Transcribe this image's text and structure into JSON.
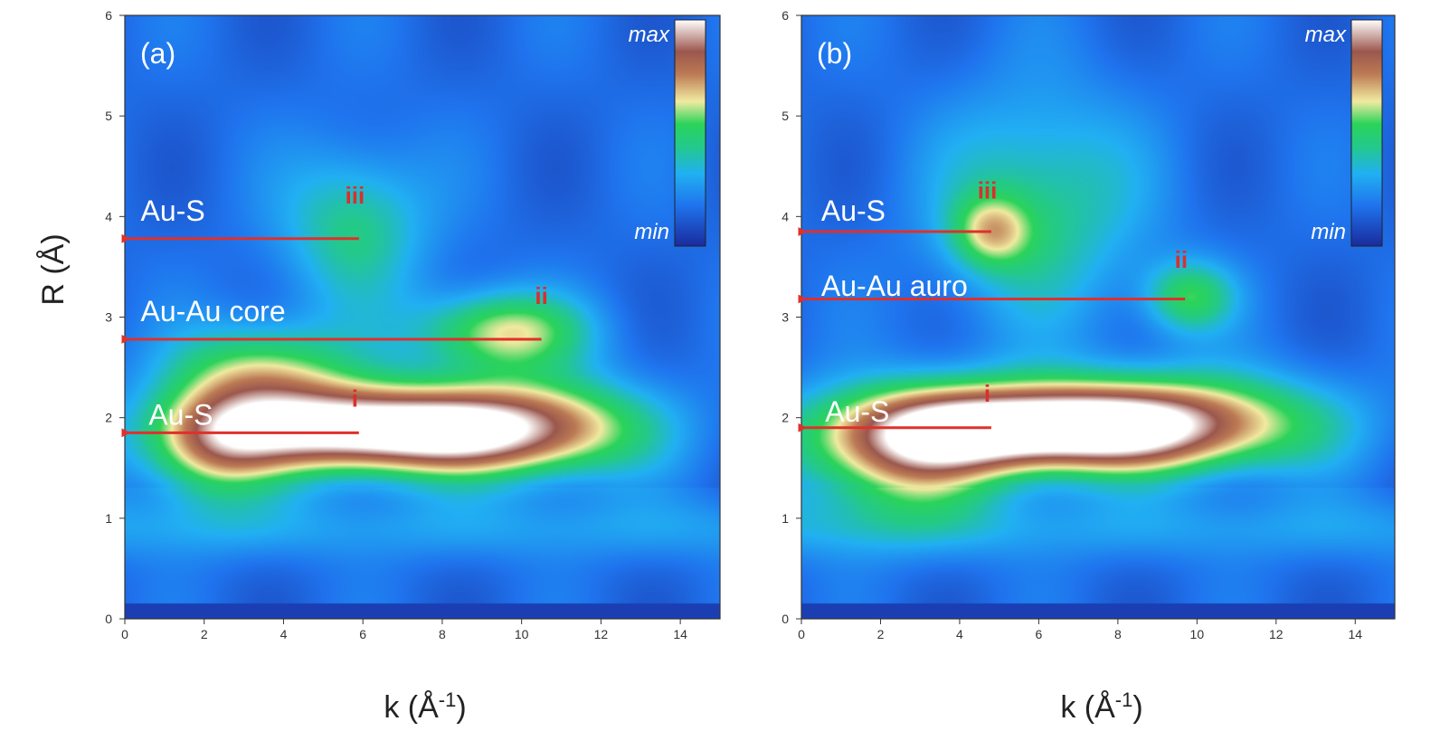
{
  "chart_data": [
    {
      "type": "heatmap",
      "panel_label": "(a)",
      "xlabel": "k (Å",
      "xlabel_sup": "-1",
      "xlabel_tail": ")",
      "ylabel": "R (Å)",
      "xlim": [
        0,
        15
      ],
      "ylim": [
        0,
        6
      ],
      "xticks": [
        0,
        2,
        4,
        6,
        8,
        10,
        12,
        14
      ],
      "yticks": [
        0,
        1,
        2,
        3,
        4,
        5,
        6
      ],
      "colorbar": {
        "max_label": "max",
        "min_label": "min"
      },
      "blobs": [
        {
          "x": 6.3,
          "y": 1.88,
          "intensity": 1.0,
          "sx": 2.9,
          "sy": 0.3
        },
        {
          "x": 10.5,
          "y": 1.9,
          "intensity": 0.45,
          "sx": 2.0,
          "sy": 0.35
        },
        {
          "x": 9.5,
          "y": 2.85,
          "intensity": 0.48,
          "sx": 1.5,
          "sy": 0.28
        },
        {
          "x": 3.5,
          "y": 2.45,
          "intensity": 0.42,
          "sx": 1.6,
          "sy": 0.35
        },
        {
          "x": 5.8,
          "y": 3.9,
          "intensity": 0.3,
          "sx": 1.3,
          "sy": 0.55
        },
        {
          "x": 2.2,
          "y": 1.7,
          "intensity": 0.42,
          "sx": 1.2,
          "sy": 0.4
        }
      ],
      "annotations": [
        {
          "text": "Au-S",
          "label_x": 0.4,
          "label_y": 4.05,
          "arrow_from_x": 5.9,
          "arrow_to_x": 0.1,
          "arrow_y": 3.78,
          "marker": "iii",
          "marker_x": 5.8,
          "marker_y": 4.22
        },
        {
          "text": "Au-Au core",
          "label_x": 0.4,
          "label_y": 3.05,
          "arrow_from_x": 10.5,
          "arrow_to_x": 0.1,
          "arrow_y": 2.78,
          "marker": "ii",
          "marker_x": 10.5,
          "marker_y": 3.22
        },
        {
          "text": "Au-S",
          "label_x": 0.6,
          "label_y": 2.02,
          "arrow_from_x": 5.9,
          "arrow_to_x": 0.1,
          "arrow_y": 1.85,
          "marker": "i",
          "marker_x": 5.8,
          "marker_y": 2.2
        }
      ]
    },
    {
      "type": "heatmap",
      "panel_label": "(b)",
      "xlabel": "k (Å",
      "xlabel_sup": "-1",
      "xlabel_tail": ")",
      "ylabel": "",
      "xlim": [
        0,
        15
      ],
      "ylim": [
        0,
        6
      ],
      "xticks": [
        0,
        2,
        4,
        6,
        8,
        10,
        12,
        14
      ],
      "yticks": [
        0,
        1,
        2,
        3,
        4,
        5,
        6
      ],
      "colorbar": {
        "max_label": "max",
        "min_label": "min"
      },
      "blobs": [
        {
          "x": 5.8,
          "y": 1.9,
          "intensity": 1.0,
          "sx": 3.0,
          "sy": 0.3
        },
        {
          "x": 10.0,
          "y": 1.95,
          "intensity": 0.45,
          "sx": 2.5,
          "sy": 0.35
        },
        {
          "x": 2.5,
          "y": 1.6,
          "intensity": 0.45,
          "sx": 1.8,
          "sy": 0.45
        },
        {
          "x": 9.8,
          "y": 3.2,
          "intensity": 0.36,
          "sx": 0.8,
          "sy": 0.25
        },
        {
          "x": 4.8,
          "y": 3.85,
          "intensity": 0.34,
          "sx": 0.7,
          "sy": 0.25
        },
        {
          "x": 6.0,
          "y": 4.1,
          "intensity": 0.3,
          "sx": 1.8,
          "sy": 0.8
        }
      ],
      "annotations": [
        {
          "text": "Au-S",
          "label_x": 0.5,
          "label_y": 4.05,
          "arrow_from_x": 4.8,
          "arrow_to_x": 0.1,
          "arrow_y": 3.85,
          "marker": "iii",
          "marker_x": 4.7,
          "marker_y": 4.27
        },
        {
          "text": "Au-Au auro",
          "label_x": 0.5,
          "label_y": 3.3,
          "arrow_from_x": 9.7,
          "arrow_to_x": 0.1,
          "arrow_y": 3.18,
          "marker": "ii",
          "marker_x": 9.6,
          "marker_y": 3.58
        },
        {
          "text": "Au-S",
          "label_x": 0.6,
          "label_y": 2.05,
          "arrow_from_x": 4.8,
          "arrow_to_x": 0.1,
          "arrow_y": 1.9,
          "marker": "i",
          "marker_x": 4.7,
          "marker_y": 2.25
        }
      ]
    }
  ]
}
